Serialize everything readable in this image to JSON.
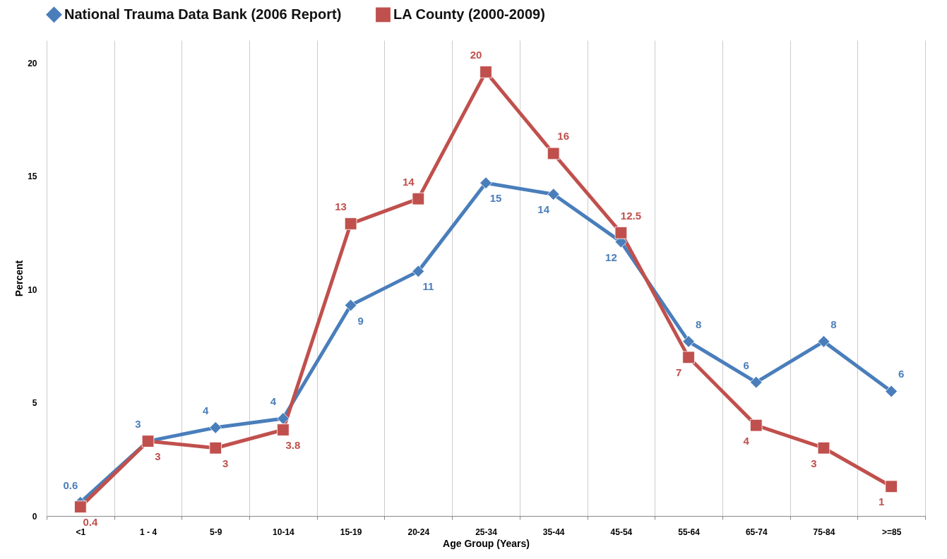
{
  "chart_data": {
    "type": "line",
    "xlabel": "Age Group (Years)",
    "ylabel": "Percent",
    "categories": [
      "<1",
      "1 - 4",
      "5-9",
      "10-14",
      "15-19",
      "20-24",
      "25-34",
      "35-44",
      "45-54",
      "55-64",
      "65-74",
      "75-84",
      ">=85"
    ],
    "series": [
      {
        "name": "National Trauma Data Bank (2006 Report)",
        "color": "#4a7ebb",
        "marker": "diamond",
        "values": [
          0.6,
          3.3,
          3.9,
          4.3,
          9.3,
          10.8,
          14.7,
          14.2,
          12.1,
          7.7,
          5.9,
          7.7,
          5.5
        ],
        "value_labels": [
          "0.6",
          "3",
          "4",
          "4",
          "9",
          "11",
          "15",
          "14",
          "12",
          "8",
          "6",
          "8",
          "6"
        ]
      },
      {
        "name": "LA County (2000-2009)",
        "color": "#c0504d",
        "marker": "square",
        "values": [
          0.4,
          3.3,
          3.0,
          3.8,
          12.9,
          14.0,
          19.6,
          16.0,
          12.5,
          7.0,
          4.0,
          3.0,
          1.3
        ],
        "value_labels": [
          "0.4",
          "3",
          "3",
          "3.8",
          "13",
          "14",
          "20",
          "16",
          "12.5",
          "7",
          "4",
          "3",
          "1"
        ]
      }
    ],
    "ylim": [
      0,
      21
    ],
    "yticks": [
      0,
      5,
      10,
      15,
      20
    ],
    "grid": "x",
    "legend": "top",
    "line_style": "solid"
  }
}
